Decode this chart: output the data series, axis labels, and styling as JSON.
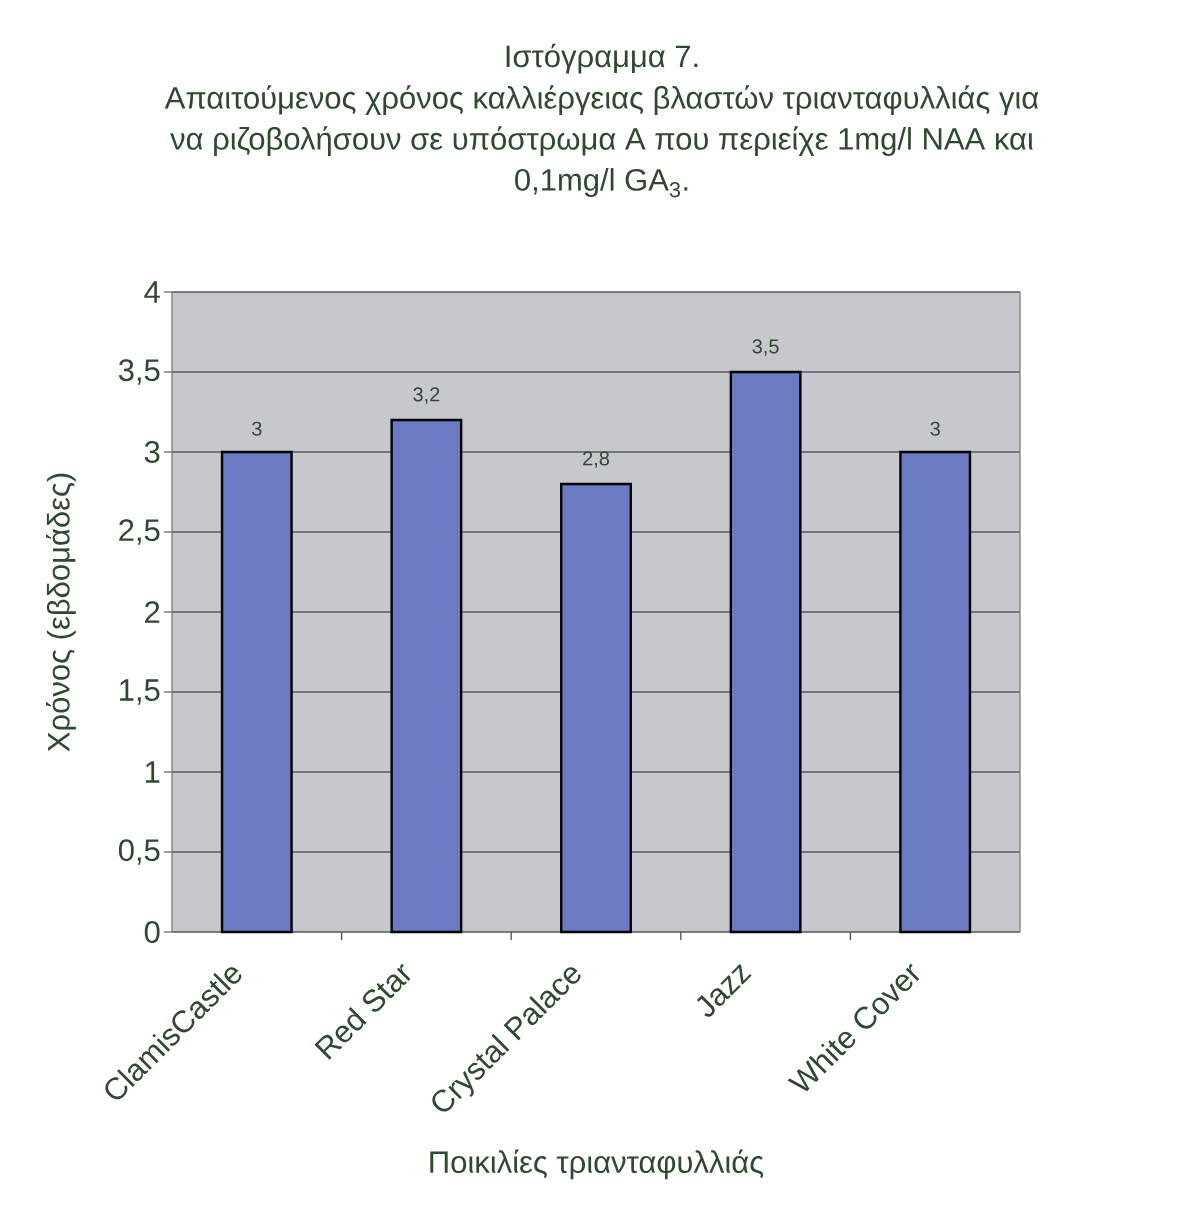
{
  "chart_data": {
    "type": "bar",
    "title": "Ιστόγραμμα 7.",
    "subtitle": "Απαιτούμενος χρόνος καλλιέργειας βλαστών τριανταφυλλιάς για να ριζοβολήσουν σε υπόστρωμα Α που περιείχε 1mg/l NAA και 0,1mg/l GA$_{3}$.",
    "xlabel": "Ποικιλίες τριανταφυλλιάς",
    "ylabel": "Χρόνος (εβδομάδες)",
    "categories": [
      "ClamisCastle",
      "Red Star",
      "Crystal Palace",
      "Jazz",
      "White Cover"
    ],
    "values": [
      3,
      3.2,
      2.8,
      3.5,
      3
    ],
    "color": "#6a7bc4",
    "value_labels": [
      "3",
      "3,2",
      "2,8",
      "3,5",
      "3"
    ],
    "ylim": [
      0,
      4
    ],
    "yticks": [
      0,
      {
        "value": 0.5,
        "label": "0,5"
      },
      1,
      {
        "value": 1.5,
        "label": "1,5"
      },
      2,
      {
        "value": 2.5,
        "label": "2,5"
      },
      3,
      {
        "value": 3.5,
        "label": "3,5"
      },
      4
    ],
    "grid": "y"
  }
}
